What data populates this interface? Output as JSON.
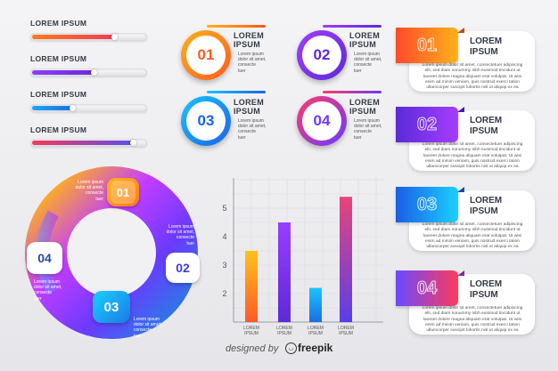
{
  "progress": [
    {
      "label": "LOREM IPSUM",
      "value": 0.73,
      "colors": [
        "#ff7a1a",
        "#f03c58"
      ]
    },
    {
      "label": "LOREM IPSUM",
      "value": 0.55,
      "colors": [
        "#8b3dff",
        "#6c2ad8"
      ]
    },
    {
      "label": "LOREM IPSUM",
      "value": 0.36,
      "colors": [
        "#18a8f5",
        "#1a6fe0"
      ]
    },
    {
      "label": "LOREM IPSUM",
      "value": 0.9,
      "colors": [
        "#f23a5b",
        "#5b4ee8"
      ]
    }
  ],
  "badges": [
    {
      "number": "01",
      "title": [
        "LOREM",
        "IPSUM"
      ],
      "body": [
        "Lorem ipsum",
        "dolor sit amet,",
        "consecte",
        "tuer"
      ],
      "colors": [
        "#ffb21a",
        "#ff5a1f"
      ]
    },
    {
      "number": "02",
      "title": [
        "LOREM",
        "IPSUM"
      ],
      "body": [
        "Lorem ipsum",
        "dolor sit amet,",
        "consecte",
        "tuer"
      ],
      "colors": [
        "#a23dff",
        "#5d2ad8"
      ]
    },
    {
      "number": "03",
      "title": [
        "LOREM",
        "IPSUM"
      ],
      "body": [
        "Lorem ipsum",
        "dolor sit amet,",
        "consecte",
        "tuer"
      ],
      "colors": [
        "#1ac4ff",
        "#1a63e6"
      ]
    },
    {
      "number": "04",
      "title": [
        "LOREM",
        "IPSUM"
      ],
      "body": [
        "Lorem ipsum",
        "dolor sit amet,",
        "consecte",
        "tuer"
      ],
      "colors": [
        "#ff3a6b",
        "#6a3aff"
      ]
    }
  ],
  "ring": {
    "segments": [
      {
        "number": "01",
        "body": [
          "Lorem ipsum",
          "dolor sit amet,",
          "consecte",
          "tuer"
        ]
      },
      {
        "number": "02",
        "body": [
          "Lorem ipsum",
          "dolor sit amet,",
          "consecte",
          "tuer"
        ]
      },
      {
        "number": "03",
        "body": [
          "Lorem ipsum",
          "dolor sit amet,",
          "consecte",
          "tuer"
        ]
      },
      {
        "number": "04",
        "body": [
          "Lorem ipsum",
          "dolor sit amet,",
          "consecte",
          "tuer"
        ]
      }
    ]
  },
  "cards": [
    {
      "number": "01",
      "title": [
        "LOREM",
        "IPSUM"
      ],
      "body": [
        "Lorem ipsum dolor sit amet, consectetuer adipiscing",
        "elit, sed diam nonummy nibh euismod tincidunt ut",
        "laoreet dolore magna aliquam erat volutpat. Ut wisi",
        "enim ad minim veniam, quis nostrud exerci tation",
        "ullamcorper suscipit lobortis nisl ut aliquip ex ea"
      ],
      "colors": [
        "#ffb21a",
        "#ff4a2a"
      ]
    },
    {
      "number": "02",
      "title": [
        "LOREM",
        "IPSUM"
      ],
      "body": [
        "Lorem ipsum dolor sit amet, consectetuer adipiscing",
        "elit, sed diam nonummy nibh euismod tincidunt ut",
        "laoreet dolore magna aliquam erat volutpat. Ut wisi",
        "enim ad minim veniam, quis nostrud exerci tation",
        "ullamcorper suscipit lobortis nisl ut aliquip ex ea"
      ],
      "colors": [
        "#a63dff",
        "#5a2ad8"
      ]
    },
    {
      "number": "03",
      "title": [
        "LOREM",
        "IPSUM"
      ],
      "body": [
        "Lorem ipsum dolor sit amet, consectetuer adipiscing",
        "elit, sed diam nonummy nibh euismod tincidunt ut",
        "laoreet dolore magna aliquam erat volutpat. Ut wisi",
        "enim ad minim veniam, quis nostrud exerci tation",
        "ullamcorper suscipit lobortis nisl ut aliquip ex ea"
      ],
      "colors": [
        "#1ad0ff",
        "#1a5ee6"
      ]
    },
    {
      "number": "04",
      "title": [
        "LOREM",
        "IPSUM"
      ],
      "body": [
        "Lorem ipsum dolor sit amet, consectetuer adipiscing",
        "elit, sed diam nonummy nibh euismod tincidunt ut",
        "laoreet dolore magna aliquam erat volutpat. Ut wisi",
        "enim ad minim veniam, quis nostrud exerci tation",
        "ullamcorper suscipit lobortis nisl ut aliquip ex ea"
      ],
      "colors": [
        "#ff3a5b",
        "#6a4aff"
      ]
    }
  ],
  "chart_data": {
    "type": "bar",
    "categories": [
      "LOREM IPSUM",
      "LOREM IPSUM",
      "LOREM IPSUM",
      "LOREM IPSUM"
    ],
    "values": [
      3.5,
      4.5,
      2.2,
      5.4
    ],
    "yticks": [
      "2",
      "3",
      "4",
      "5"
    ],
    "ylim": [
      1,
      6
    ],
    "bar_colors": [
      [
        "#ffc21a",
        "#ff5a2a"
      ],
      [
        "#9a3dff",
        "#5d2ad8"
      ],
      [
        "#1ac4ff",
        "#1a6fe0"
      ],
      [
        "#e8447a",
        "#5a3ee8"
      ]
    ]
  },
  "footer": {
    "left": "designed by",
    "right": "freepik"
  }
}
